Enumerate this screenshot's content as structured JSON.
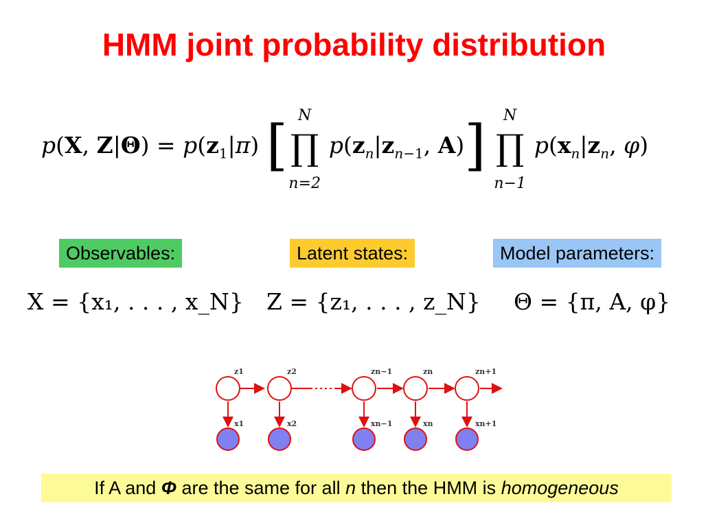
{
  "title": "HMM joint probability distribution",
  "labels": {
    "observables": "Observables:",
    "latent": "Latent states:",
    "params": "Model parameters:"
  },
  "colors": {
    "title": "#ff0000",
    "observables_bg": "#4ecb63",
    "latent_bg": "#fdcb2e",
    "params_bg": "#9ac6f6",
    "note_bg": "#fdfb99",
    "node_stroke": "#dd1111",
    "observed_fill": "#8080f0"
  },
  "equation": {
    "prod1_upper": "N",
    "prod1_lower": "n=2",
    "prod2_upper": "N",
    "prod2_lower": "n−1"
  },
  "sets": {
    "X": "X = {x₁, . . . , x_N}",
    "Z": "Z = {z₁, . . . , z_N}",
    "Theta": "Θ = {π, A, φ}"
  },
  "diagram": {
    "latent_labels": [
      "z1",
      "z2",
      "zn−1",
      "zn",
      "zn+1"
    ],
    "observed_labels": [
      "x1",
      "x2",
      "xn−1",
      "xn",
      "xn+1"
    ]
  },
  "note": {
    "part1": "If A and ",
    "symbol": "Φ",
    "part2": " are the same for all ",
    "var": "n",
    "part3": " then the HMM is ",
    "emph": "homogeneous"
  }
}
